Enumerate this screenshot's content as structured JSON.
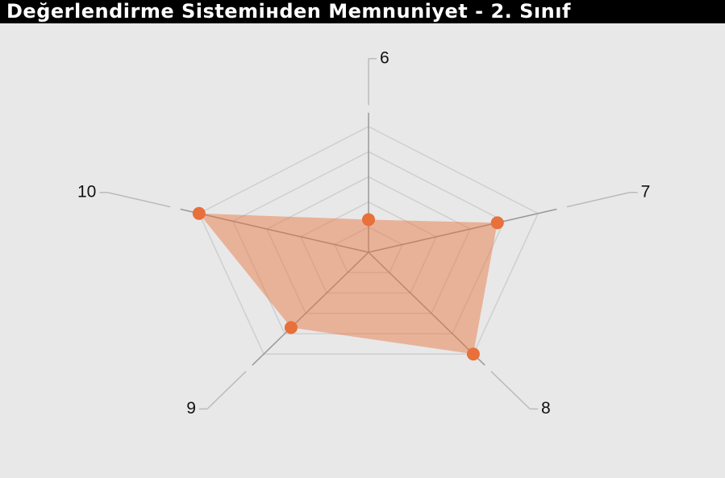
{
  "chart_data": {
    "type": "radar",
    "title": "Değerlendirme Sistemінden Memnuniyet - 2. Sınıf",
    "categories": [
      "6",
      "7",
      "8",
      "9",
      "10"
    ],
    "values": [
      1.3,
      3.8,
      5.0,
      3.7,
      5.0
    ],
    "color": "#e8703a",
    "rlim": [
      0,
      5
    ],
    "rticks": [
      1,
      2,
      3,
      4,
      5
    ],
    "grid": true
  }
}
